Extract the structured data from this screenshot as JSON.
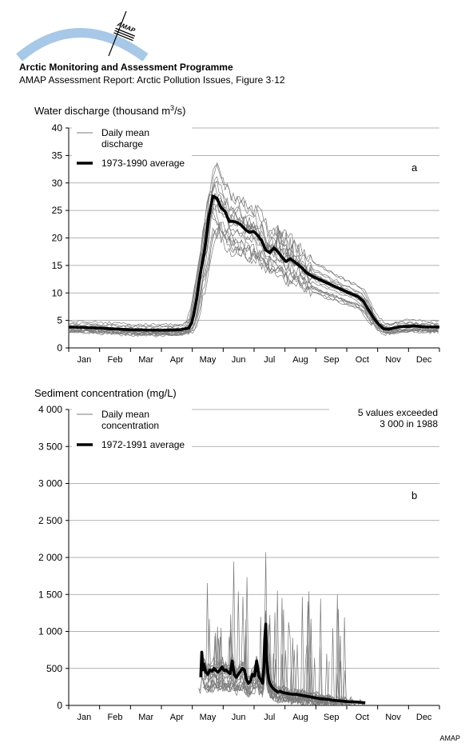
{
  "header": {
    "logo_text": "AMAP",
    "title": "Arctic Monitoring and Assessment Programme",
    "subtitle": "AMAP Assessment Report: Arctic Pollution Issues, Figure 3·12"
  },
  "footer": {
    "credit": "AMAP"
  },
  "colors": {
    "logo_arc": "#a8c8e8",
    "daily_lines": "#7a7a7a",
    "average_line": "#000000"
  },
  "chart_data": [
    {
      "type": "line",
      "panel_label": "a",
      "ylabel": "Water discharge (thousand m³/s)",
      "ylabel_main": "Water discharge (thousand m",
      "ylabel_sup": "3",
      "ylabel_end": "/s)",
      "ylim": [
        0,
        40
      ],
      "yticks": [
        0,
        5,
        10,
        15,
        20,
        25,
        30,
        35,
        40
      ],
      "ytick_labels": [
        "0",
        "5",
        "10",
        "15",
        "20",
        "25",
        "30",
        "35",
        "40"
      ],
      "months": [
        "Jan",
        "Feb",
        "Mar",
        "Apr",
        "May",
        "Jun",
        "Jul",
        "Aug",
        "Sep",
        "Oct",
        "Nov",
        "Dec"
      ],
      "legend": {
        "daily_line1": "Daily mean",
        "daily_line2": "discharge",
        "average": "1973-1990 average"
      },
      "grid": "horizontal",
      "series": [
        {
          "name": "1973-1990 average",
          "style": "thick",
          "x": [
            0,
            30,
            60,
            90,
            110,
            118,
            121,
            123,
            126,
            130,
            134,
            138,
            142,
            146,
            150,
            154,
            158,
            162,
            166,
            170,
            174,
            178,
            182,
            186,
            190,
            194,
            198,
            202,
            206,
            210,
            214,
            218,
            222,
            226,
            230,
            234,
            240,
            246,
            252,
            258,
            264,
            270,
            276,
            280,
            285,
            290,
            295,
            300,
            305,
            310,
            315,
            320,
            325,
            330,
            335,
            340,
            345,
            350,
            355,
            360,
            365
          ],
          "values": [
            3.8,
            3.6,
            3.3,
            3.2,
            3.3,
            3.6,
            4.5,
            6,
            9,
            14,
            18,
            24,
            27.6,
            27.2,
            25.5,
            24.8,
            23,
            23,
            22.8,
            22.3,
            21.5,
            21,
            21.2,
            20.5,
            19.5,
            17.8,
            17.3,
            18.2,
            17.5,
            16.5,
            15.7,
            16.2,
            15.7,
            15.1,
            14.5,
            13.7,
            13,
            12.5,
            12,
            11.5,
            11,
            10.5,
            10,
            9.7,
            9.3,
            8.5,
            7,
            5.5,
            4.3,
            3.5,
            3.4,
            3.6,
            3.8,
            3.9,
            3.9,
            4,
            3.9,
            3.8,
            3.8,
            3.8,
            3.8
          ]
        }
      ]
    },
    {
      "type": "line",
      "panel_label": "b",
      "ylabel": "Sediment concentration (mg/L)",
      "ylim": [
        0,
        4000
      ],
      "yticks": [
        0,
        500,
        1000,
        1500,
        2000,
        2500,
        3000,
        3500,
        4000
      ],
      "ytick_labels": [
        "0",
        "500",
        "1 000",
        "1 500",
        "2 000",
        "2 500",
        "3 000",
        "3 500",
        "4 000"
      ],
      "months": [
        "Jan",
        "Feb",
        "Mar",
        "Apr",
        "May",
        "Jun",
        "Jul",
        "Aug",
        "Sep",
        "Oct",
        "Nov",
        "Dec"
      ],
      "legend": {
        "daily_line1": "Daily mean",
        "daily_line2": "concentration",
        "average": "1972-1991 average"
      },
      "annotation": [
        "5 values exceeded",
        "3 000 in 1988"
      ],
      "grid": "horizontal",
      "series": [
        {
          "name": "1972-1991 average",
          "style": "thick",
          "x": [
            130,
            131,
            132,
            133,
            134,
            135,
            137,
            139,
            141,
            143,
            145,
            147,
            149,
            151,
            153,
            155,
            157,
            159,
            161,
            163,
            165,
            167,
            169,
            171,
            173,
            175,
            177,
            179,
            181,
            183,
            185,
            187,
            189,
            191,
            192,
            193,
            194,
            195,
            196,
            197,
            198,
            200,
            202,
            204,
            206,
            208,
            212,
            216,
            220,
            224,
            228,
            232,
            236,
            240,
            244,
            248,
            252,
            256,
            260,
            264,
            268,
            272,
            276,
            280,
            284,
            288,
            292
          ],
          "values": [
            380,
            720,
            480,
            560,
            500,
            450,
            420,
            480,
            460,
            500,
            470,
            450,
            480,
            520,
            470,
            480,
            450,
            430,
            600,
            420,
            380,
            420,
            460,
            500,
            480,
            350,
            300,
            330,
            420,
            400,
            600,
            400,
            350,
            300,
            500,
            900,
            1100,
            600,
            450,
            350,
            300,
            250,
            220,
            200,
            180,
            190,
            170,
            160,
            150,
            150,
            140,
            130,
            120,
            110,
            100,
            90,
            85,
            80,
            70,
            65,
            60,
            55,
            50,
            48,
            45,
            40,
            35
          ]
        }
      ]
    }
  ]
}
